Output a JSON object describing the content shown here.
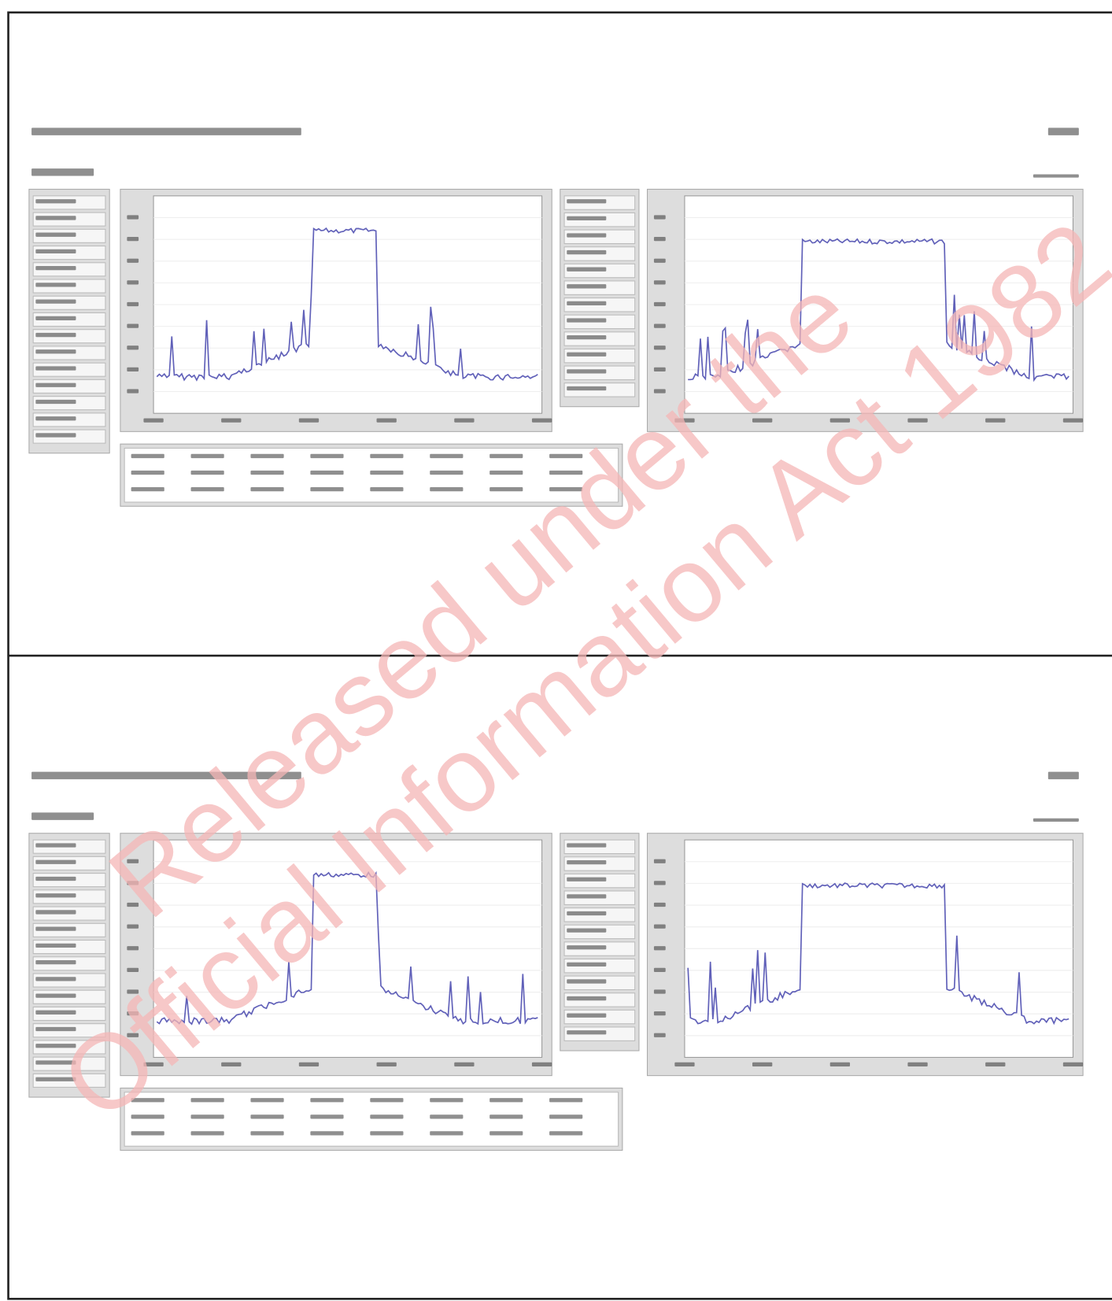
{
  "watermark": {
    "line1": "Released under the",
    "line2": "Official Information Act 1982"
  }
}
